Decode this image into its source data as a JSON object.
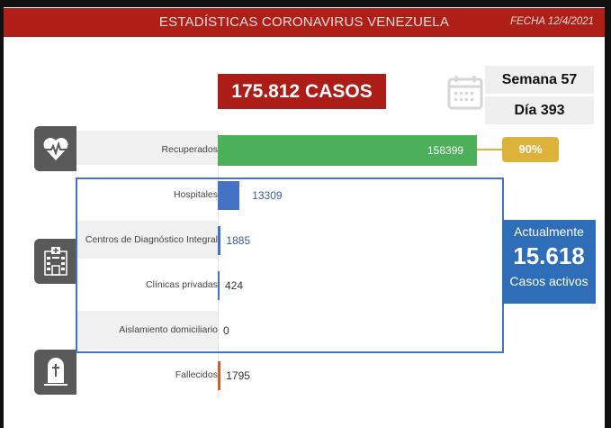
{
  "header": {
    "title": "ESTADÍSTICAS CORONAVIRUS VENEZUELA",
    "date": "FECHA 12/4/2021"
  },
  "total": "175.812 CASOS",
  "semana": "Semana 57",
  "dia": "Día 393",
  "recovered_pct": "90%",
  "active": {
    "top": "Actualmente",
    "value": "15.618",
    "bottom": "Casos activos"
  },
  "icons": [
    "calendar-icon",
    "heart-pulse-icon",
    "hospital-icon",
    "tombstone-icon"
  ],
  "colors": {
    "header": "#b01f17",
    "recovered": "#4caf5a",
    "active": "#4472c4",
    "deaths": "#c8612a",
    "badge": "#dcb23a"
  },
  "chart_data": {
    "type": "bar",
    "orientation": "horizontal",
    "categories": [
      "Recuperados",
      "Hospitales",
      "Centros de Diagnóstico Integral",
      "Clínicas privadas",
      "Aislamiento domiciliario",
      "Fallecidos"
    ],
    "values": [
      158399,
      13309,
      1885,
      424,
      0,
      1795
    ],
    "xlim": [
      0,
      158399
    ]
  }
}
